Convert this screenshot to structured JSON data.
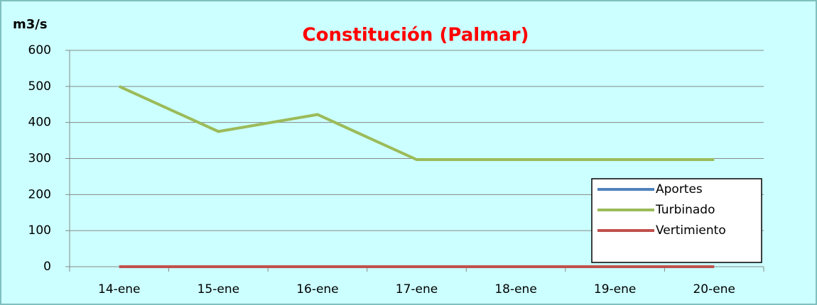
{
  "chart_data": {
    "type": "line",
    "title": "Constitución (Palmar)",
    "y_label": "m3/s",
    "categories": [
      "14-ene",
      "15-ene",
      "16-ene",
      "17-ene",
      "18-ene",
      "19-ene",
      "20-ene"
    ],
    "series": [
      {
        "name": "Aportes",
        "color": "#4f81bd",
        "values": [
          0,
          0,
          0,
          0,
          0,
          0,
          0
        ]
      },
      {
        "name": "Turbinado",
        "color": "#9bbb59",
        "values": [
          500,
          375,
          422,
          297,
          297,
          297,
          297
        ]
      },
      {
        "name": "Vertimiento",
        "color": "#c0504d",
        "values": [
          0,
          0,
          0,
          0,
          0,
          0,
          0
        ]
      }
    ],
    "ylim": [
      0,
      600
    ],
    "yticks": [
      0,
      100,
      200,
      300,
      400,
      500,
      600
    ],
    "grid": true,
    "legend": "right"
  }
}
